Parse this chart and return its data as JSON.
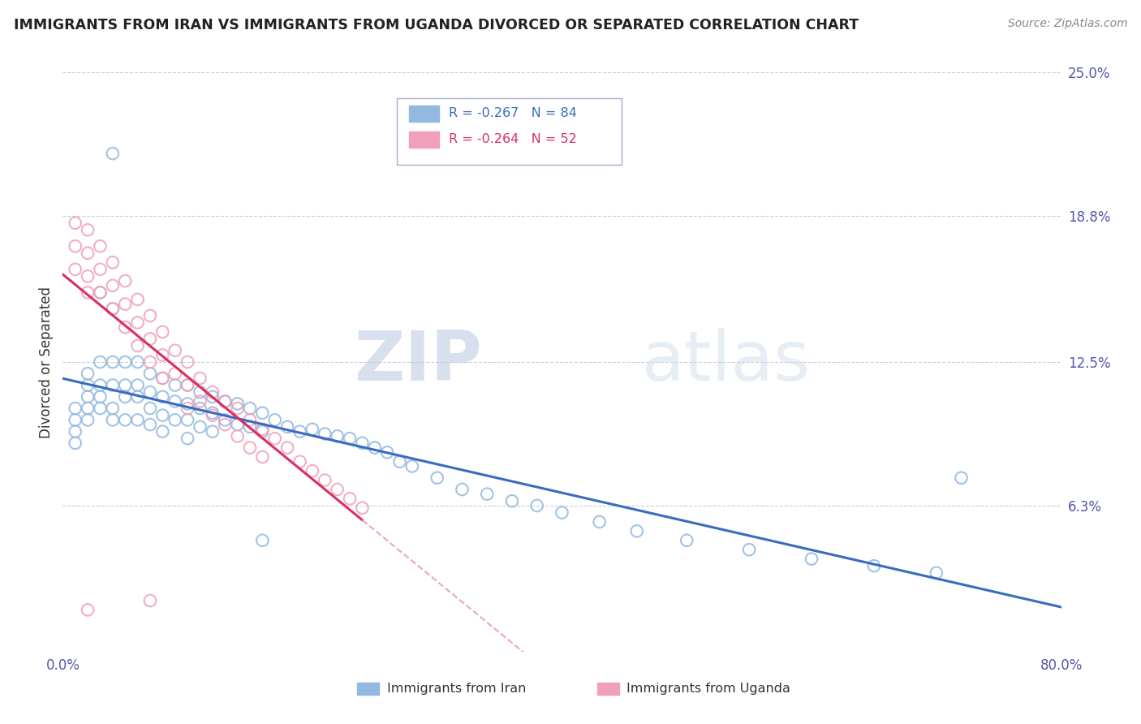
{
  "title": "IMMIGRANTS FROM IRAN VS IMMIGRANTS FROM UGANDA DIVORCED OR SEPARATED CORRELATION CHART",
  "source": "Source: ZipAtlas.com",
  "ylabel": "Divorced or Separated",
  "legend_iran": "Immigrants from Iran",
  "legend_uganda": "Immigrants from Uganda",
  "r_iran": -0.267,
  "n_iran": 84,
  "r_uganda": -0.264,
  "n_uganda": 52,
  "color_iran": "#92b9e0",
  "color_uganda": "#f0a0b8",
  "line_color_iran": "#3a6bbf",
  "line_color_uganda": "#d83060",
  "line_color_uganda_dash": "#e8a8b8",
  "watermark_zip": "ZIP",
  "watermark_atlas": "atlas",
  "xlim": [
    0.0,
    0.8
  ],
  "ylim": [
    0.0,
    0.25
  ],
  "iran_x": [
    0.04,
    0.01,
    0.01,
    0.01,
    0.01,
    0.02,
    0.02,
    0.02,
    0.02,
    0.02,
    0.03,
    0.03,
    0.03,
    0.03,
    0.04,
    0.04,
    0.04,
    0.04,
    0.05,
    0.05,
    0.05,
    0.05,
    0.06,
    0.06,
    0.06,
    0.06,
    0.07,
    0.07,
    0.07,
    0.07,
    0.08,
    0.08,
    0.08,
    0.08,
    0.09,
    0.09,
    0.09,
    0.1,
    0.1,
    0.1,
    0.1,
    0.11,
    0.11,
    0.11,
    0.12,
    0.12,
    0.12,
    0.13,
    0.13,
    0.14,
    0.14,
    0.15,
    0.15,
    0.16,
    0.16,
    0.17,
    0.18,
    0.19,
    0.2,
    0.21,
    0.22,
    0.23,
    0.24,
    0.25,
    0.26,
    0.27,
    0.28,
    0.3,
    0.32,
    0.34,
    0.36,
    0.38,
    0.4,
    0.43,
    0.46,
    0.5,
    0.55,
    0.6,
    0.65,
    0.7,
    0.03,
    0.04,
    0.16,
    0.72
  ],
  "iran_y": [
    0.215,
    0.105,
    0.1,
    0.095,
    0.09,
    0.12,
    0.115,
    0.11,
    0.105,
    0.1,
    0.125,
    0.115,
    0.11,
    0.105,
    0.125,
    0.115,
    0.105,
    0.1,
    0.125,
    0.115,
    0.11,
    0.1,
    0.125,
    0.115,
    0.11,
    0.1,
    0.12,
    0.112,
    0.105,
    0.098,
    0.118,
    0.11,
    0.102,
    0.095,
    0.115,
    0.108,
    0.1,
    0.115,
    0.107,
    0.1,
    0.092,
    0.112,
    0.105,
    0.097,
    0.11,
    0.103,
    0.095,
    0.108,
    0.1,
    0.107,
    0.098,
    0.105,
    0.097,
    0.103,
    0.095,
    0.1,
    0.097,
    0.095,
    0.096,
    0.094,
    0.093,
    0.092,
    0.09,
    0.088,
    0.086,
    0.082,
    0.08,
    0.075,
    0.07,
    0.068,
    0.065,
    0.063,
    0.06,
    0.056,
    0.052,
    0.048,
    0.044,
    0.04,
    0.037,
    0.034,
    0.155,
    0.148,
    0.048,
    0.075
  ],
  "uganda_x": [
    0.01,
    0.01,
    0.01,
    0.02,
    0.02,
    0.02,
    0.02,
    0.03,
    0.03,
    0.03,
    0.04,
    0.04,
    0.04,
    0.05,
    0.05,
    0.05,
    0.06,
    0.06,
    0.06,
    0.07,
    0.07,
    0.07,
    0.08,
    0.08,
    0.08,
    0.09,
    0.09,
    0.1,
    0.1,
    0.1,
    0.11,
    0.11,
    0.12,
    0.12,
    0.13,
    0.13,
    0.14,
    0.14,
    0.15,
    0.15,
    0.16,
    0.16,
    0.17,
    0.18,
    0.19,
    0.2,
    0.21,
    0.22,
    0.23,
    0.24,
    0.07,
    0.02
  ],
  "uganda_y": [
    0.185,
    0.175,
    0.165,
    0.182,
    0.172,
    0.162,
    0.155,
    0.175,
    0.165,
    0.155,
    0.168,
    0.158,
    0.148,
    0.16,
    0.15,
    0.14,
    0.152,
    0.142,
    0.132,
    0.145,
    0.135,
    0.125,
    0.138,
    0.128,
    0.118,
    0.13,
    0.12,
    0.125,
    0.115,
    0.105,
    0.118,
    0.108,
    0.112,
    0.102,
    0.108,
    0.098,
    0.105,
    0.093,
    0.1,
    0.088,
    0.096,
    0.084,
    0.092,
    0.088,
    0.082,
    0.078,
    0.074,
    0.07,
    0.066,
    0.062,
    0.022,
    0.018
  ]
}
